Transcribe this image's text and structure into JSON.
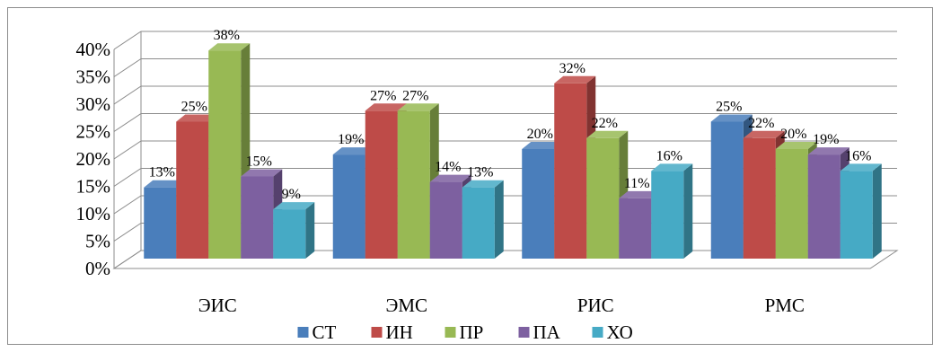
{
  "chart_data": {
    "type": "bar",
    "style": "3d-clustered-column",
    "categories": [
      "ЭИС",
      "ЭМС",
      "РИС",
      "РМС"
    ],
    "series": [
      {
        "name": "СТ",
        "color": "#4a7ebb",
        "values": [
          13,
          19,
          20,
          25
        ],
        "labels": [
          "13%",
          "19%",
          "20%",
          "25%"
        ]
      },
      {
        "name": "ИН",
        "color": "#be4b48",
        "values": [
          25,
          27,
          32,
          22
        ],
        "labels": [
          "25%",
          "27%",
          "32%",
          "22%"
        ]
      },
      {
        "name": "ПР",
        "color": "#98b954",
        "values": [
          38,
          27,
          22,
          20
        ],
        "labels": [
          "38%",
          "27%",
          "22%",
          "20%"
        ]
      },
      {
        "name": "ПА",
        "color": "#7d60a0",
        "values": [
          15,
          14,
          11,
          19
        ],
        "labels": [
          "15%",
          "14%",
          "11%",
          "19%"
        ]
      },
      {
        "name": "ХО",
        "color": "#46aac5",
        "values": [
          9,
          13,
          16,
          16
        ],
        "labels": [
          "9%",
          "13%",
          "16%",
          "16%"
        ]
      }
    ],
    "y_ticks": [
      "0%",
      "5%",
      "10%",
      "15%",
      "20%",
      "25%",
      "30%",
      "35%",
      "40%"
    ],
    "ylim": [
      0,
      40
    ],
    "grid": true,
    "legend_position": "bottom"
  }
}
